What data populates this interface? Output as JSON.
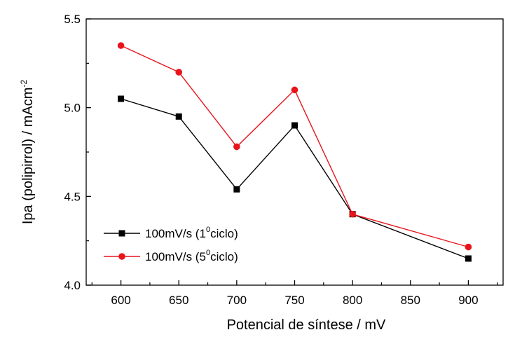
{
  "chart_data": {
    "type": "line",
    "xlabel": "Potencial de síntese / mV",
    "ylabel_main": "Ipa (polipirrol) / mAcm",
    "ylabel_sup": "-2",
    "xlim": [
      570,
      930
    ],
    "ylim": [
      4.0,
      5.5
    ],
    "xticks": [
      600,
      650,
      700,
      750,
      800,
      850,
      900
    ],
    "xtick_labels": [
      "600",
      "650",
      "700",
      "750",
      "800",
      "850",
      "900"
    ],
    "yticks": [
      4.0,
      4.5,
      5.0,
      5.5
    ],
    "ytick_labels": [
      "4.0",
      "4.5",
      "5.0",
      "5.5"
    ],
    "grid": false,
    "legend_position": "bottom-left",
    "series": [
      {
        "legend_pre": "100mV/s (1",
        "legend_sup": "0",
        "legend_post": "ciclo)",
        "color": "#000000",
        "marker": "square",
        "x": [
          600,
          650,
          700,
          750,
          800,
          900
        ],
        "y": [
          5.05,
          4.95,
          4.54,
          4.9,
          4.4,
          4.15
        ]
      },
      {
        "legend_pre": "100mV/s (5",
        "legend_sup": "0",
        "legend_post": "ciclo)",
        "color": "#e8141b",
        "marker": "circle",
        "x": [
          600,
          650,
          700,
          750,
          800,
          900
        ],
        "y": [
          5.35,
          5.2,
          4.78,
          5.1,
          4.4,
          4.215
        ]
      }
    ]
  }
}
